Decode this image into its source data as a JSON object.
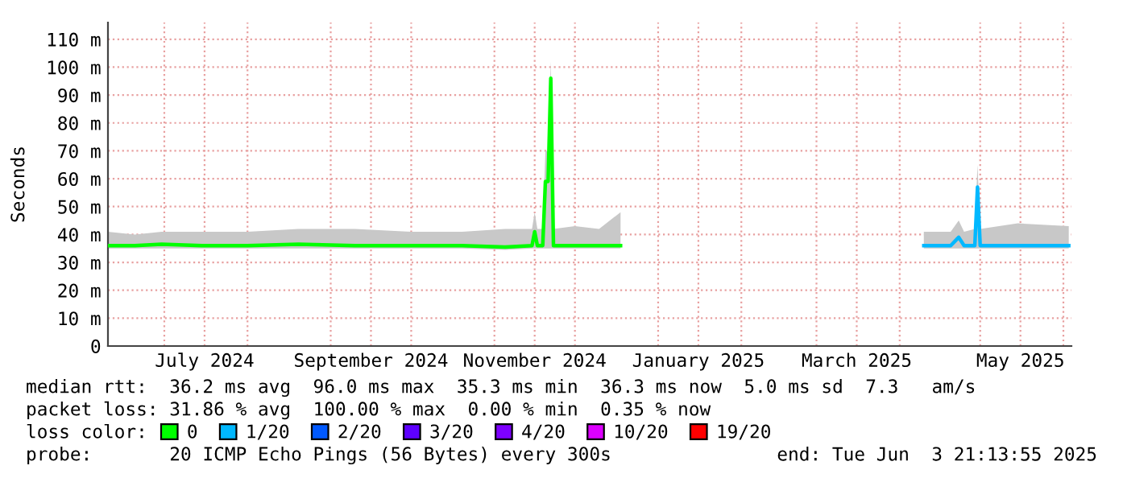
{
  "chart_data": {
    "type": "line",
    "ylabel": "Seconds",
    "legend_title": "loss color:",
    "legend": "bottom",
    "grid": true,
    "marker": "none",
    "line_style": "solid",
    "xlim": [
      "2024-06-10",
      "2025-06-04"
    ],
    "xticks": [
      {
        "value": "2024-07-01",
        "label": null
      },
      {
        "value": "2024-07-16",
        "label": "July 2024"
      },
      {
        "value": "2024-08-01",
        "label": null
      },
      {
        "value": "2024-09-01",
        "label": null
      },
      {
        "value": "2024-09-16",
        "label": "September 2024"
      },
      {
        "value": "2024-10-01",
        "label": null
      },
      {
        "value": "2024-11-01",
        "label": null
      },
      {
        "value": "2024-11-16",
        "label": "November 2024"
      },
      {
        "value": "2024-12-01",
        "label": null
      },
      {
        "value": "2025-01-01",
        "label": null
      },
      {
        "value": "2025-01-16",
        "label": "January 2025"
      },
      {
        "value": "2025-02-01",
        "label": null
      },
      {
        "value": "2025-03-01",
        "label": null
      },
      {
        "value": "2025-03-16",
        "label": "March 2025"
      },
      {
        "value": "2025-04-01",
        "label": null
      },
      {
        "value": "2025-05-01",
        "label": null
      },
      {
        "value": "2025-05-16",
        "label": "May 2025"
      },
      {
        "value": "2025-06-01",
        "label": null
      }
    ],
    "ylim": [
      0,
      116
    ],
    "yticks": [
      0,
      {
        "value": 10,
        "label": "10 m"
      },
      {
        "value": 20,
        "label": "20 m"
      },
      {
        "value": 30,
        "label": "30 m"
      },
      {
        "value": 40,
        "label": "40 m"
      },
      {
        "value": 50,
        "label": "50 m"
      },
      {
        "value": 60,
        "label": "60 m"
      },
      {
        "value": 70,
        "label": "70 m"
      },
      {
        "value": 80,
        "label": "80 m"
      },
      {
        "value": 90,
        "label": "90 m"
      },
      {
        "value": 100,
        "label": "100 m"
      },
      {
        "value": 110,
        "label": "110 m"
      }
    ],
    "series": [
      {
        "name": "0",
        "color": "#00ff00",
        "x": [
          "2024-06-10",
          "2024-06-20",
          "2024-06-30",
          "2024-07-15",
          "2024-08-01",
          "2024-08-20",
          "2024-09-10",
          "2024-10-01",
          "2024-10-20",
          "2024-11-05",
          "2024-11-15",
          "2024-11-16",
          "2024-11-17",
          "2024-11-19",
          "2024-11-20",
          "2024-11-21",
          "2024-11-22",
          "2024-11-23",
          "2024-12-01",
          "2024-12-10",
          "2024-12-18"
        ],
        "values": [
          36,
          36,
          36.5,
          36,
          36,
          36.5,
          36,
          36,
          36,
          35.5,
          36,
          41,
          36,
          36,
          59,
          59,
          96,
          36,
          36,
          36,
          36
        ],
        "lower": [
          35,
          35,
          35,
          35,
          35,
          35,
          35,
          35,
          35,
          34.5,
          35,
          35,
          35,
          35,
          35,
          35,
          35,
          35,
          35,
          35,
          35
        ],
        "upper": [
          41,
          40,
          41,
          41,
          41,
          42,
          42,
          41,
          41,
          42,
          42,
          48,
          42,
          42,
          70,
          70,
          102,
          42,
          43,
          42,
          48
        ]
      },
      {
        "name": "1/20",
        "color": "#00b8ff",
        "x": [
          "2025-04-10",
          "2025-04-20",
          "2025-04-23",
          "2025-04-25",
          "2025-04-29",
          "2025-04-30",
          "2025-05-01",
          "2025-05-15",
          "2025-06-03"
        ],
        "values": [
          36,
          36,
          39,
          36,
          36,
          57,
          36,
          36,
          36
        ],
        "lower": [
          35,
          35,
          35,
          35,
          35,
          35,
          35,
          35,
          35
        ],
        "upper": [
          41,
          41,
          45,
          41,
          42,
          65,
          42,
          44,
          43
        ]
      },
      {
        "name": "2/20",
        "color": "#0059ff"
      },
      {
        "name": "3/20",
        "color": "#5e00ff"
      },
      {
        "name": "4/20",
        "color": "#7e00ff"
      },
      {
        "name": "10/20",
        "color": "#dd00ff"
      },
      {
        "name": "19/20",
        "color": "#ff0000"
      }
    ],
    "annotations": [
      "median rtt:  36.2 ms avg  96.0 ms max  35.3 ms min  36.3 ms now  5.0 ms sd  7.3   am/s",
      "packet loss: 31.86 % avg  100.00 % max  0.00 % min  0.35 % now",
      "probe:       20 ICMP Echo Pings (56 Bytes) every 300s",
      "end: Tue Jun  3 21:13:55 2025"
    ]
  }
}
